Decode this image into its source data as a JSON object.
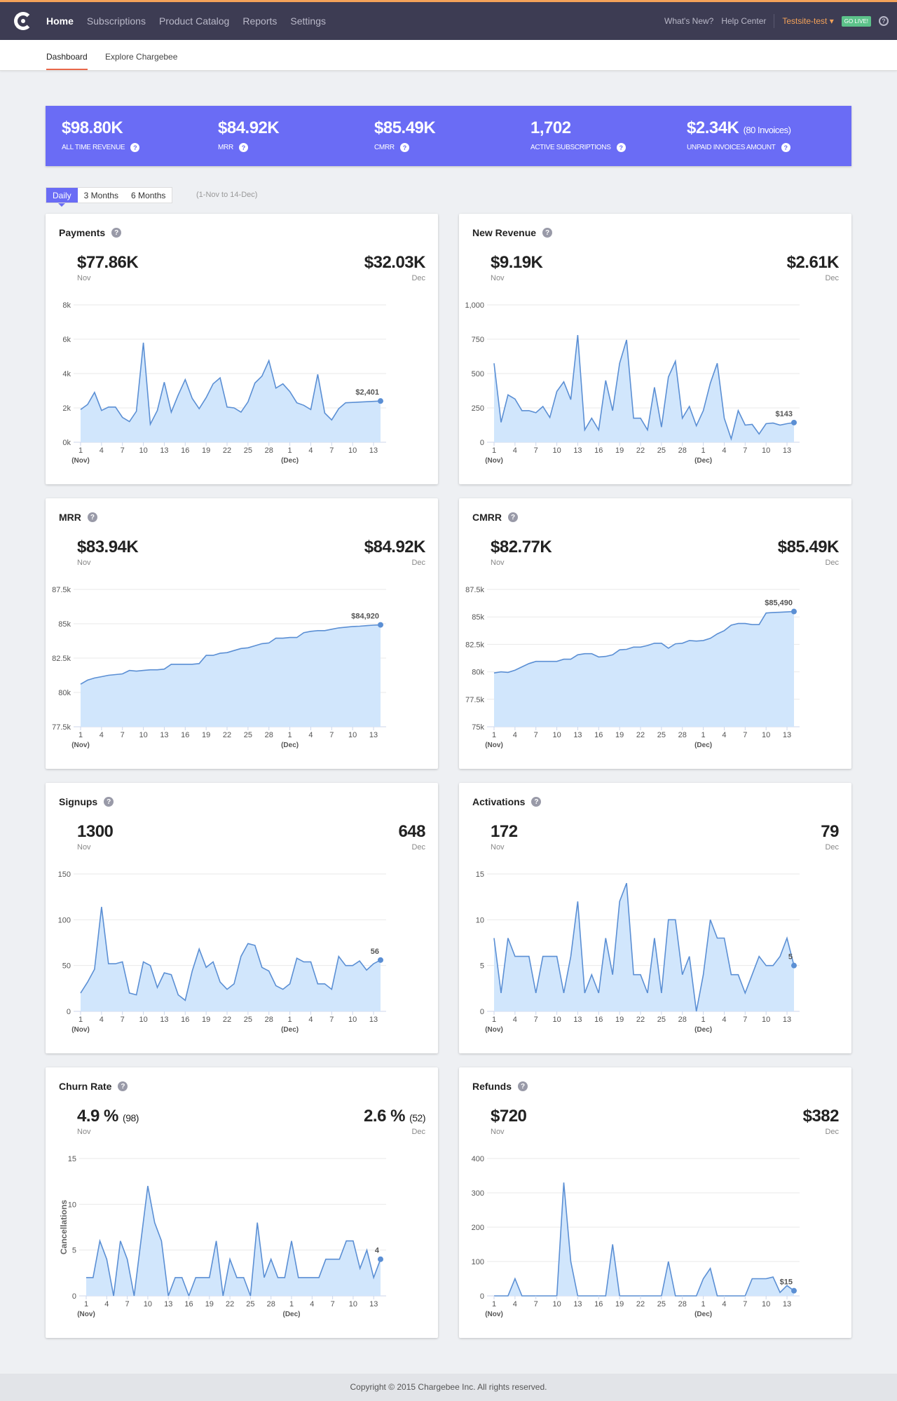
{
  "nav": {
    "items": [
      "Home",
      "Subscriptions",
      "Product Catalog",
      "Reports",
      "Settings"
    ],
    "whats_new": "What's New?",
    "help": "Help Center",
    "site": "Testsite-test",
    "go_live": "GO LIVE!"
  },
  "subnav": {
    "items": [
      "Dashboard",
      "Explore Chargebee"
    ]
  },
  "kpis": [
    {
      "value": "$98.80K",
      "extra": "",
      "label": "ALL TIME REVENUE"
    },
    {
      "value": "$84.92K",
      "extra": "",
      "label": "MRR"
    },
    {
      "value": "$85.49K",
      "extra": "",
      "label": "CMRR"
    },
    {
      "value": "1,702",
      "extra": "",
      "label": "ACTIVE SUBSCRIPTIONS"
    },
    {
      "value": "$2.34K",
      "extra": "(80 Invoices)",
      "label": "UNPAID INVOICES AMOUNT"
    }
  ],
  "period_tabs": [
    "Daily",
    "3 Months",
    "6 Months"
  ],
  "period_range": "(1-Nov to 14-Dec)",
  "colors": {
    "accent": "#6a6cf5",
    "line": "#5b8fd4",
    "fill": "#d1e6fc",
    "nav": "#3d3c53"
  },
  "x_ticks": [
    "1",
    "4",
    "7",
    "10",
    "13",
    "16",
    "19",
    "22",
    "25",
    "28",
    "1",
    "4",
    "7",
    "10",
    "13"
  ],
  "month_labels": [
    "(Nov)",
    "(Dec)"
  ],
  "chart_data": [
    {
      "type": "area",
      "title": "Payments",
      "nov": "$77.86K",
      "dec": "$32.03K",
      "nov_label": "Nov",
      "dec_label": "Dec",
      "ylim": [
        0,
        8000
      ],
      "yticks": [
        "0k",
        "2k",
        "4k",
        "6k",
        "8k"
      ],
      "last_label": "$2,401",
      "values": [
        1900,
        2200,
        2900,
        1850,
        2050,
        2050,
        1450,
        1200,
        1800,
        5800,
        1050,
        1850,
        3500,
        1750,
        2750,
        3650,
        2550,
        1950,
        2600,
        3400,
        3750,
        2050,
        2000,
        1750,
        2350,
        3450,
        3850,
        4750,
        3150,
        3400,
        2950,
        2300,
        2150,
        1900,
        3950,
        1700,
        1300,
        1950,
        2300,
        2320,
        2340,
        2360,
        2380,
        2401
      ]
    },
    {
      "type": "area",
      "title": "New Revenue",
      "nov": "$9.19K",
      "dec": "$2.61K",
      "nov_label": "Nov",
      "dec_label": "Dec",
      "ylim": [
        0,
        1000
      ],
      "yticks": [
        "0",
        "250",
        "500",
        "750",
        "1,000"
      ],
      "last_label": "$143",
      "values": [
        575,
        145,
        345,
        315,
        230,
        230,
        215,
        260,
        180,
        370,
        440,
        310,
        780,
        90,
        175,
        90,
        450,
        230,
        575,
        745,
        175,
        175,
        90,
        400,
        110,
        475,
        590,
        175,
        260,
        120,
        230,
        430,
        575,
        175,
        25,
        230,
        125,
        130,
        60,
        135,
        140,
        125,
        135,
        143
      ]
    },
    {
      "type": "area",
      "title": "MRR",
      "nov": "$83.94K",
      "dec": "$84.92K",
      "nov_label": "Nov",
      "dec_label": "Dec",
      "ylim": [
        77500,
        87500
      ],
      "yticks": [
        "77.5k",
        "80k",
        "82.5k",
        "85k",
        "87.5k"
      ],
      "last_label": "$84,920",
      "values": [
        80600,
        80900,
        81050,
        81150,
        81250,
        81300,
        81350,
        81600,
        81550,
        81600,
        81650,
        81650,
        81700,
        82050,
        82050,
        82050,
        82050,
        82100,
        82700,
        82700,
        82850,
        82900,
        83050,
        83200,
        83250,
        83400,
        83550,
        83600,
        83950,
        83950,
        84000,
        84000,
        84350,
        84450,
        84500,
        84500,
        84600,
        84700,
        84750,
        84800,
        84820,
        84860,
        84900,
        84920
      ]
    },
    {
      "type": "area",
      "title": "CMRR",
      "nov": "$82.77K",
      "dec": "$85.49K",
      "nov_label": "Nov",
      "dec_label": "Dec",
      "ylim": [
        75000,
        87500
      ],
      "yticks": [
        "75k",
        "77.5k",
        "80k",
        "82.5k",
        "85k",
        "87.5k"
      ],
      "last_label": "$85,490",
      "values": [
        79900,
        80000,
        79950,
        80150,
        80450,
        80750,
        80950,
        80950,
        80950,
        80950,
        81150,
        81150,
        81550,
        81650,
        81650,
        81350,
        81400,
        81550,
        82000,
        82050,
        82250,
        82250,
        82400,
        82600,
        82600,
        82150,
        82550,
        82600,
        82850,
        82800,
        82850,
        83050,
        83450,
        83750,
        84250,
        84400,
        84400,
        84300,
        84300,
        85350,
        85400,
        85420,
        85450,
        85490
      ]
    },
    {
      "type": "area",
      "title": "Signups",
      "nov": "1300",
      "dec": "648",
      "nov_label": "Nov",
      "dec_label": "Dec",
      "ylim": [
        0,
        150
      ],
      "yticks": [
        "0",
        "50",
        "100",
        "150"
      ],
      "last_label": "56",
      "values": [
        20,
        32,
        46,
        114,
        52,
        52,
        54,
        20,
        18,
        54,
        50,
        26,
        42,
        40,
        18,
        12,
        44,
        68,
        48,
        54,
        32,
        24,
        30,
        60,
        74,
        72,
        48,
        44,
        28,
        24,
        30,
        58,
        54,
        54,
        30,
        30,
        24,
        60,
        50,
        50,
        55,
        45,
        52,
        56
      ]
    },
    {
      "type": "area",
      "title": "Activations",
      "nov": "172",
      "dec": "79",
      "nov_label": "Nov",
      "dec_label": "Dec",
      "ylim": [
        0,
        15
      ],
      "yticks": [
        "0",
        "5",
        "10",
        "15"
      ],
      "last_label": "5",
      "values": [
        8,
        2,
        8,
        6,
        6,
        6,
        2,
        6,
        6,
        6,
        2,
        6,
        12,
        2,
        4,
        2,
        8,
        4,
        12,
        14,
        4,
        4,
        2,
        8,
        2,
        10,
        10,
        4,
        6,
        0,
        4,
        10,
        8,
        8,
        4,
        4,
        2,
        4,
        6,
        5,
        5,
        6,
        8,
        5
      ]
    },
    {
      "type": "area",
      "title": "Churn Rate",
      "nov": "4.9 %",
      "nov_extra": "(98)",
      "dec": "2.6 %",
      "dec_extra": "(52)",
      "nov_label": "Nov",
      "dec_label": "Dec",
      "ylim": [
        0,
        15
      ],
      "yticks": [
        "0",
        "5",
        "10",
        "15"
      ],
      "ylabel": "Cancellations",
      "last_label": "4",
      "values": [
        2,
        2,
        6,
        4,
        0,
        6,
        4,
        0,
        6,
        12,
        8,
        6,
        0,
        2,
        2,
        0,
        2,
        2,
        2,
        6,
        0,
        4,
        2,
        2,
        0,
        8,
        2,
        4,
        2,
        2,
        6,
        2,
        2,
        2,
        2,
        4,
        4,
        4,
        6,
        6,
        3,
        5,
        2,
        4
      ]
    },
    {
      "type": "area",
      "title": "Refunds",
      "nov": "$720",
      "dec": "$382",
      "nov_label": "Nov",
      "dec_label": "Dec",
      "ylim": [
        0,
        400
      ],
      "yticks": [
        "0",
        "100",
        "200",
        "300",
        "400"
      ],
      "last_label": "$15",
      "values": [
        0,
        0,
        0,
        50,
        0,
        0,
        0,
        0,
        0,
        0,
        330,
        100,
        0,
        0,
        0,
        0,
        0,
        150,
        0,
        0,
        0,
        0,
        0,
        0,
        0,
        100,
        0,
        0,
        0,
        0,
        50,
        80,
        0,
        0,
        0,
        0,
        0,
        50,
        50,
        50,
        55,
        10,
        30,
        15
      ]
    }
  ],
  "footer": "Copyright © 2015 Chargebee Inc. All rights reserved."
}
